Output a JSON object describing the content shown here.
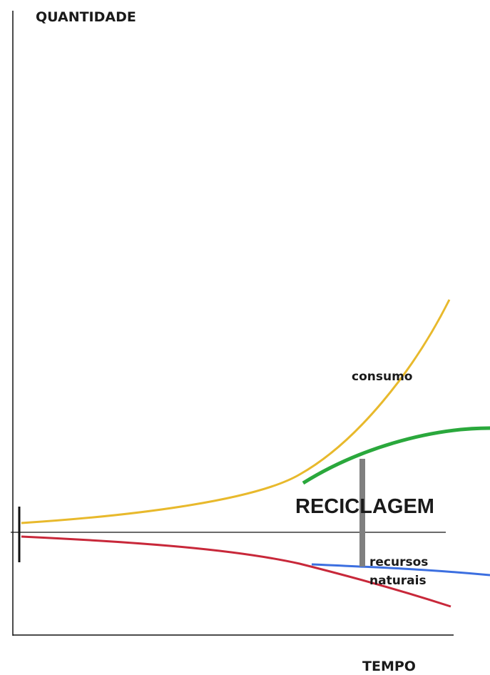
{
  "axes": {
    "y_label": "QUANTIDADE",
    "x_label": "TEMPO"
  },
  "curves": {
    "consumo": "consumo",
    "reciclagem": "RECICLAGEM",
    "recursos_naturais": [
      "recursos",
      "naturais"
    ]
  }
}
